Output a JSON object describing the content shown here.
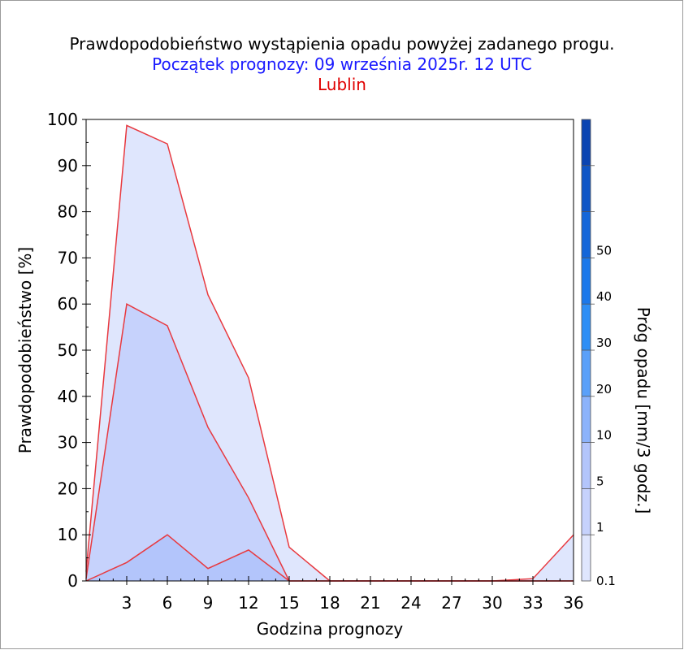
{
  "colors": {
    "series_lines": "#e8393f",
    "threshold_fills": [
      "#dfe6fd",
      "#c6d2fc",
      "#b3c5fb",
      "#8cb3fb",
      "#5aa0f9",
      "#2d8ef5",
      "#1b78ea",
      "#1466d9",
      "#0e55c6",
      "#0a44b2"
    ],
    "title": "#000000",
    "subtitle": "#1a1aff",
    "location": "#e00000"
  },
  "chart_data": {
    "type": "area",
    "title": "Prawdopodobieństwo wystąpienia opadu powyżej zadanego progu.",
    "subtitle": "Początek prognozy: 09 września 2025r. 12 UTC",
    "location": "Lublin",
    "xlabel": "Godzina prognozy",
    "ylabel": "Prawdopodobieństwo [%]",
    "colorbar_label": "Próg opadu [mm/3 godz.]",
    "xlim": [
      0,
      36
    ],
    "ylim": [
      0,
      100
    ],
    "x_ticks": [
      3,
      6,
      9,
      12,
      15,
      18,
      21,
      24,
      27,
      30,
      33,
      36
    ],
    "y_ticks": [
      0,
      10,
      20,
      30,
      40,
      50,
      60,
      70,
      80,
      90,
      100
    ],
    "colorbar_ticks": [
      "0.1",
      "1",
      "5",
      "10",
      "20",
      "30",
      "40",
      "50"
    ],
    "x": [
      0,
      3,
      6,
      9,
      12,
      15,
      18,
      21,
      24,
      27,
      30,
      33,
      36
    ],
    "series": [
      {
        "threshold": "0.1",
        "values": [
          2,
          98.7,
          94.7,
          62,
          44,
          7.3,
          0,
          0,
          0,
          0,
          0,
          0.5,
          10
        ]
      },
      {
        "threshold": "1",
        "values": [
          0.5,
          60,
          55.3,
          33.3,
          18,
          0,
          0,
          0,
          0,
          0,
          0,
          0,
          0
        ]
      },
      {
        "threshold": "5",
        "values": [
          0,
          4,
          10,
          2.7,
          6.7,
          0,
          0,
          0,
          0,
          0,
          0,
          0,
          0
        ]
      }
    ]
  }
}
